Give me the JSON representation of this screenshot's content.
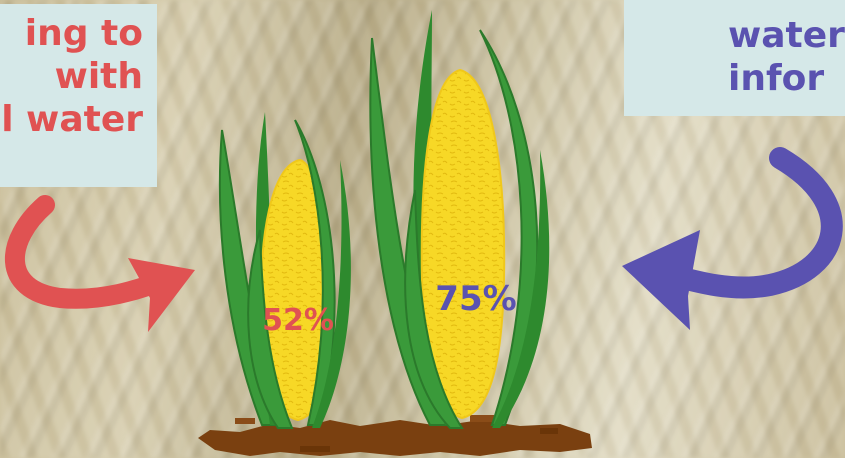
{
  "callout_left": {
    "lines": [
      "ing to",
      "with",
      "l water"
    ],
    "color": "#e05252"
  },
  "callout_right": {
    "lines": [
      "water",
      "infor"
    ],
    "color": "#5a52b0"
  },
  "corn_left": {
    "percent_label": "52%",
    "label_color": "#e05252"
  },
  "corn_right": {
    "percent_label": "75%",
    "label_color": "#5a52b0"
  },
  "colors": {
    "leaf": "#3a9a3a",
    "leaf_dark": "#2b7a2b",
    "kernel": "#f7d826",
    "soil": "#7a4010",
    "panel": "#d5e8e8"
  }
}
